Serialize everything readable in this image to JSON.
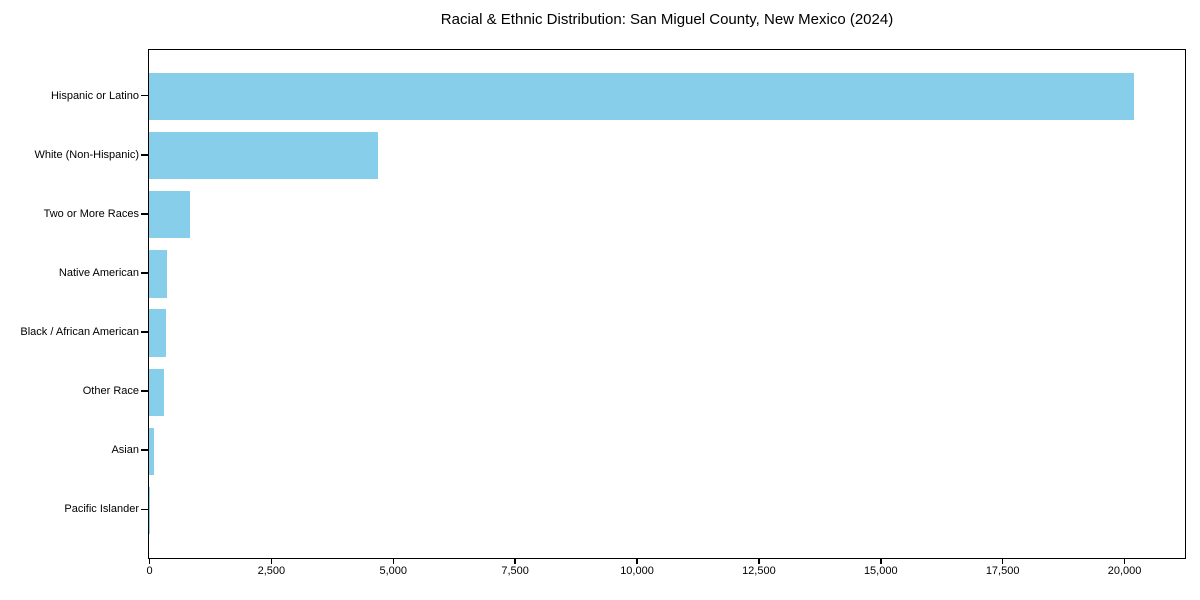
{
  "chart_data": {
    "type": "bar",
    "orientation": "horizontal",
    "title": "Racial & Ethnic Distribution: San Miguel County, New Mexico (2024)",
    "categories": [
      "Hispanic or Latino",
      "White (Non-Hispanic)",
      "Two or More Races",
      "Native American",
      "Black / African American",
      "Other Race",
      "Asian",
      "Pacific Islander"
    ],
    "values": [
      20200,
      4700,
      850,
      370,
      345,
      310,
      100,
      10
    ],
    "xlabel": "",
    "ylabel": "",
    "xlim": [
      0,
      21230
    ],
    "xticks": [
      0,
      2500,
      5000,
      7500,
      10000,
      12500,
      15000,
      17500,
      20000
    ],
    "xtick_labels": [
      "0",
      "2,500",
      "5,000",
      "7,500",
      "10,000",
      "12,500",
      "15,000",
      "17,500",
      "20,000"
    ],
    "bar_color": "#87CEEB",
    "background_color": "#FFFFFF",
    "axis_color": "#000000",
    "grid": false,
    "legend_position": "none",
    "bar_height_fraction": 0.8
  }
}
